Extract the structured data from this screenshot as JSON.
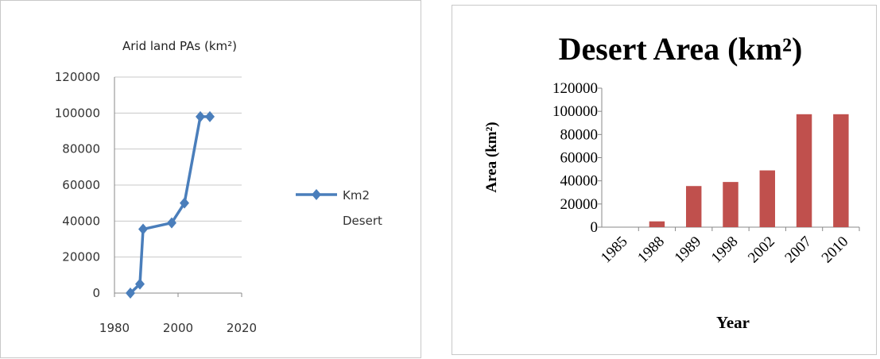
{
  "chart_data": [
    {
      "type": "line",
      "title": "Arid land PAs (km²)",
      "xlabel": "",
      "ylabel": "",
      "xlim": [
        1980,
        2020
      ],
      "ylim": [
        0,
        120000
      ],
      "x_ticks": [
        "1980",
        "2000",
        "2020"
      ],
      "y_ticks": [
        "0",
        "20000",
        "40000",
        "60000",
        "80000",
        "100000",
        "120000"
      ],
      "grid": true,
      "legend_position": "right",
      "series": [
        {
          "name": "Km2",
          "name_line2": "Desert",
          "color": "#4a7ebb",
          "marker": "diamond",
          "x": [
            1985,
            1988,
            1989,
            1998,
            2002,
            2007,
            2010
          ],
          "values": [
            0,
            5000,
            35500,
            39000,
            50000,
            98000,
            98000
          ]
        }
      ]
    },
    {
      "type": "bar",
      "title": "Desert Area (km²)",
      "xlabel": "Year",
      "ylabel": "Area (km²)",
      "ylim": [
        0,
        120000
      ],
      "y_ticks": [
        "0",
        "20000",
        "40000",
        "60000",
        "80000",
        "100000",
        "120000"
      ],
      "grid": false,
      "legend_position": "none",
      "categories": [
        "1985",
        "1988",
        "1989",
        "1998",
        "2002",
        "2007",
        "2010"
      ],
      "series": [
        {
          "color": "#c0504d",
          "values": [
            0,
            5000,
            35500,
            39000,
            49000,
            97500,
            97500
          ]
        }
      ]
    }
  ]
}
